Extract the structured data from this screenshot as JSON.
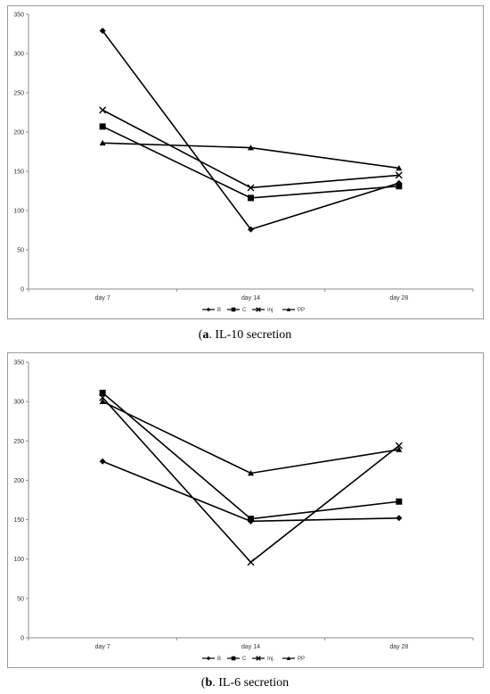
{
  "chart_data": [
    {
      "id": "a",
      "type": "line",
      "categories": [
        "day 7",
        "day 14",
        "day 28"
      ],
      "ylim": [
        0,
        350
      ],
      "yticks": [
        0,
        50,
        100,
        150,
        200,
        250,
        300,
        350
      ],
      "grid": false,
      "legend": "bottom",
      "series": [
        {
          "name": "B",
          "marker": "diamond",
          "values": [
            329,
            76,
            135
          ]
        },
        {
          "name": "C",
          "marker": "square",
          "values": [
            207,
            116,
            131
          ]
        },
        {
          "name": "Inj.",
          "marker": "x",
          "values": [
            228,
            129,
            145
          ]
        },
        {
          "name": "PP",
          "marker": "triangle",
          "values": [
            186,
            180,
            154
          ]
        }
      ],
      "caption_label": "a",
      "caption_text": ". IL-10 secretion"
    },
    {
      "id": "b",
      "type": "line",
      "categories": [
        "day 7",
        "day 14",
        "day 28"
      ],
      "ylim": [
        0,
        350
      ],
      "yticks": [
        0,
        50,
        100,
        150,
        200,
        250,
        300,
        350
      ],
      "grid": false,
      "legend": "bottom",
      "series": [
        {
          "name": "B",
          "marker": "diamond",
          "values": [
            224,
            148,
            152
          ]
        },
        {
          "name": "C",
          "marker": "square",
          "values": [
            311,
            151,
            173
          ]
        },
        {
          "name": "Inj.",
          "marker": "x",
          "values": [
            305,
            96,
            244
          ]
        },
        {
          "name": "PP",
          "marker": "triangle",
          "values": [
            300,
            209,
            239
          ]
        }
      ],
      "caption_label": "b",
      "caption_text": ". IL-6 secretion"
    }
  ],
  "colors": {
    "line": "#000000",
    "axis": "#8c8c8c",
    "border": "#9a9a9a"
  }
}
